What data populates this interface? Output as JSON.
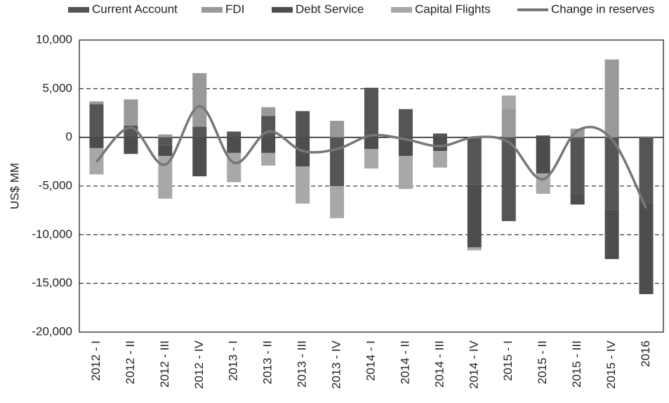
{
  "chart_data": {
    "type": "bar",
    "ylabel": "US$ MM",
    "categories": [
      "2012 - I",
      "2012 - II",
      "2012 - III",
      "2012 - IV",
      "2013 - I",
      "2013 - II",
      "2013 - III",
      "2013 - IV",
      "2014 - I",
      "2014 - II",
      "2014 - III",
      "2014 - IV",
      "2015 - I",
      "2015 - II",
      "2015 - III",
      "2015 - IV",
      "2016"
    ],
    "stacked": true,
    "series": [
      {
        "name": "Current Account",
        "color": "#555555",
        "values": [
          3400,
          1200,
          -800,
          1100,
          600,
          2200,
          2700,
          -5000,
          5100,
          2900,
          400,
          -4800,
          -8600,
          200,
          -5800,
          -7400,
          -6800
        ]
      },
      {
        "name": "FDI",
        "color": "#999999",
        "values": [
          300,
          2700,
          300,
          5500,
          0,
          900,
          0,
          1700,
          0,
          0,
          0,
          0,
          2900,
          0,
          900,
          8000,
          100
        ]
      },
      {
        "name": "Debt Service",
        "color": "#4d4d4d",
        "values": [
          -1100,
          -1700,
          -1100,
          -4000,
          -1600,
          -1600,
          -3000,
          0,
          -1200,
          -1900,
          -1400,
          -6500,
          0,
          -3700,
          -1100,
          -5100,
          -9300
        ]
      },
      {
        "name": "Capital Flights",
        "color": "#a8a8a8",
        "values": [
          -2700,
          0,
          -4400,
          0,
          -3000,
          -1300,
          -3800,
          -3300,
          -2000,
          -3400,
          -1700,
          -300,
          1400,
          -2100,
          0,
          0,
          0
        ]
      },
      {
        "name": "Change in reserves",
        "type": "line",
        "color": "#777777",
        "values": [
          -2500,
          1000,
          -2800,
          3200,
          -2600,
          600,
          -1400,
          -1200,
          200,
          -200,
          -900,
          0,
          -500,
          -4300,
          700,
          -200,
          -7300
        ]
      }
    ],
    "ylim": [
      -20000,
      10000
    ],
    "yticks": [
      {
        "value": -20000,
        "label": "-20,000"
      },
      {
        "value": -15000,
        "label": "-15,000"
      },
      {
        "value": -10000,
        "label": "-10,000"
      },
      {
        "value": -5000,
        "label": "-5,000"
      },
      0,
      {
        "value": 5000,
        "label": "5,000"
      },
      {
        "value": 10000,
        "label": "10,000"
      }
    ],
    "grid": true,
    "legend": "top"
  }
}
